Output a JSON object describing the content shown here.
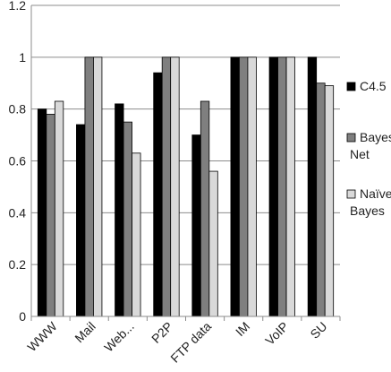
{
  "chart_data": {
    "type": "bar",
    "categories": [
      "WWW",
      "Mail",
      "Web...",
      "P2P",
      "FTP data",
      "IM",
      "VoIP",
      "SU"
    ],
    "series": [
      {
        "name": "C4.5",
        "color": "#000000",
        "values": [
          0.8,
          0.74,
          0.82,
          0.94,
          0.7,
          1.0,
          1.0,
          1.0
        ]
      },
      {
        "name": "Bayes Net",
        "color": "#7f7f7f",
        "values": [
          0.78,
          1.0,
          0.75,
          1.0,
          0.83,
          1.0,
          1.0,
          0.9
        ]
      },
      {
        "name": "Naïve Bayes",
        "color": "#d9d9d9",
        "values": [
          0.83,
          1.0,
          0.63,
          1.0,
          0.56,
          1.0,
          1.0,
          0.89
        ]
      }
    ],
    "yticks": [
      "0",
      "0.2",
      "0.4",
      "0.6",
      "0.8",
      "1",
      "1.2"
    ],
    "ylim": [
      0,
      1.2
    ],
    "grid": true,
    "legend": "right",
    "legend_lines": [
      [
        "C4.5"
      ],
      [
        "Bayes",
        "Net"
      ],
      [
        "Naïve",
        "Bayes"
      ]
    ],
    "title": "",
    "xlabel": "",
    "ylabel": ""
  }
}
